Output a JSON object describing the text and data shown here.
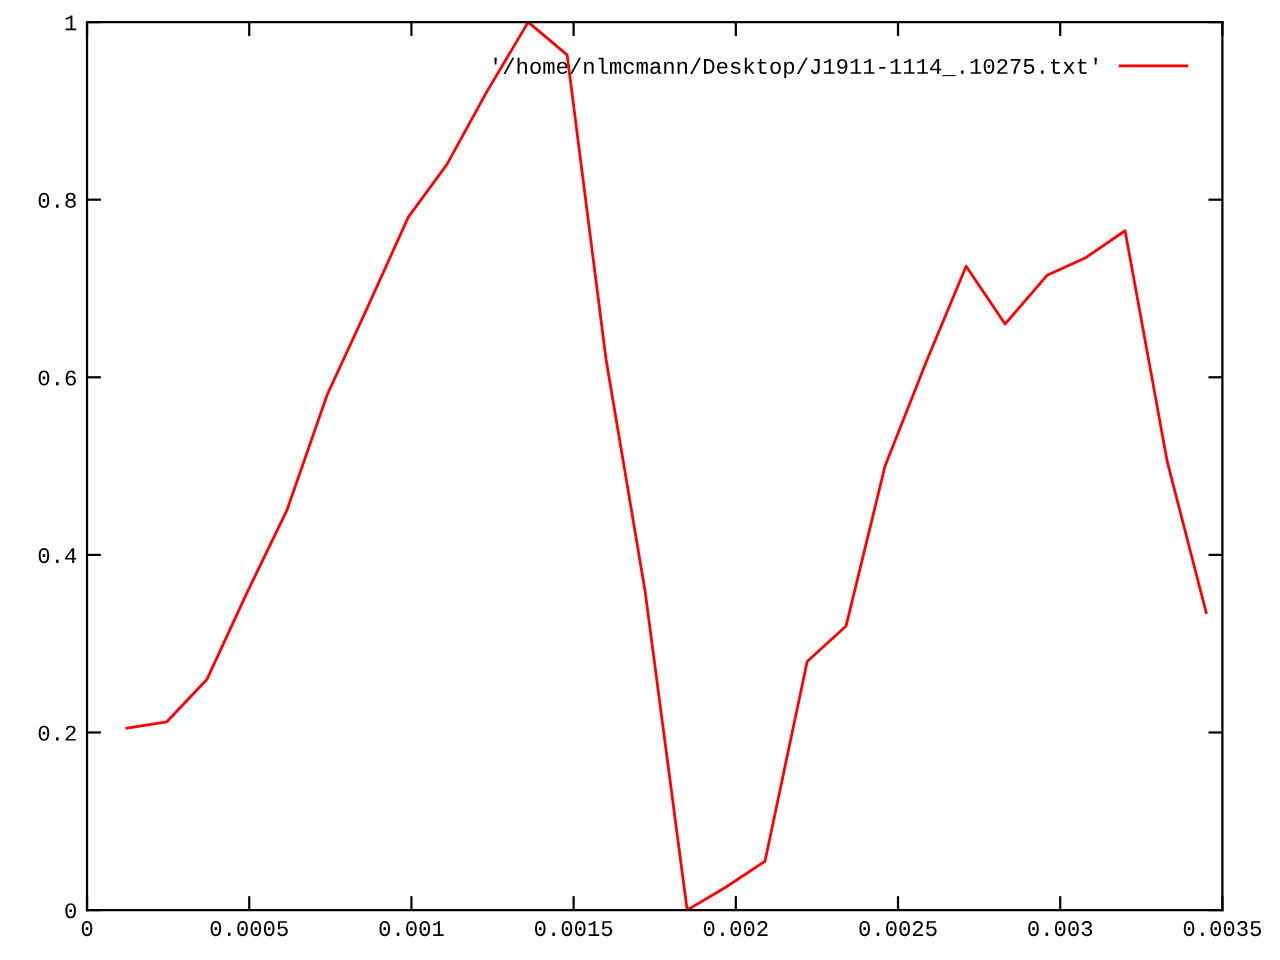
{
  "chart_data": {
    "type": "line",
    "x": [
      0.000123,
      0.000246,
      0.00037,
      0.00049,
      0.000616,
      0.00074,
      0.00086,
      0.00099,
      0.00111,
      0.00123,
      0.00136,
      0.00148,
      0.0016,
      0.00172,
      0.00185,
      0.00197,
      0.00209,
      0.00222,
      0.00234,
      0.00246,
      0.00259,
      0.00271,
      0.00283,
      0.00296,
      0.00308,
      0.0032,
      0.00333,
      0.00345
    ],
    "series": [
      {
        "name": "'/home/nlmcmann/Desktop/J1911-1114_.10275.txt'",
        "color": "#ff0000",
        "values": [
          0.205,
          0.212,
          0.26,
          0.355,
          0.45,
          0.58,
          0.675,
          0.78,
          0.84,
          0.92,
          1.0,
          0.963,
          0.62,
          0.36,
          0.0,
          0.026,
          0.055,
          0.28,
          0.32,
          0.5,
          0.62,
          0.725,
          0.66,
          0.715,
          0.735,
          0.765,
          0.505,
          0.335
        ]
      }
    ],
    "xlim": [
      0,
      0.0035
    ],
    "ylim": [
      0,
      1
    ],
    "xticks": [
      0,
      0.0005,
      0.001,
      0.0015,
      0.002,
      0.0025,
      0.003,
      0.0035
    ],
    "yticks": [
      0,
      0.2,
      0.4,
      0.6,
      0.8,
      1
    ],
    "grid": false,
    "legend": "top right",
    "marker": "none",
    "line_style": "solid"
  }
}
